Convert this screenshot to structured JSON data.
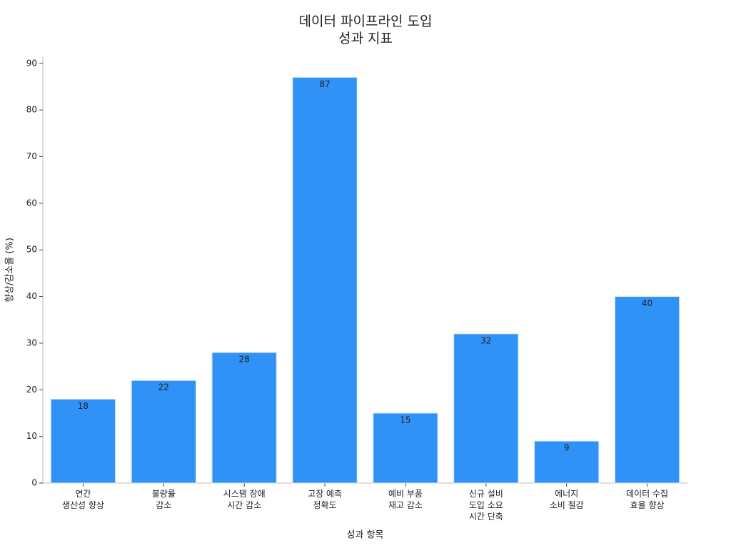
{
  "chart_data": {
    "type": "bar",
    "title": "데이터 파이프라인 도입\n성과 지표",
    "x_label": "성과 항목",
    "y_label": "향상/감소율 (%)",
    "categories": [
      "연간\n생산성 향상",
      "불량률\n감소",
      "시스템 장애\n시간 감소",
      "고장 예측\n정확도",
      "예비 부품\n재고 감소",
      "신규 설비\n도입 소요\n시간 단축",
      "에너지\n소비 절감",
      "데이터 수집\n효율 향상"
    ],
    "values": [
      18,
      22,
      28,
      87,
      15,
      32,
      9,
      40
    ],
    "color": "#3091f6",
    "ylim": [
      0,
      91.35
    ],
    "yticks": [
      0,
      10,
      20,
      30,
      40,
      50,
      60,
      70,
      80,
      90
    ],
    "grid": false
  }
}
